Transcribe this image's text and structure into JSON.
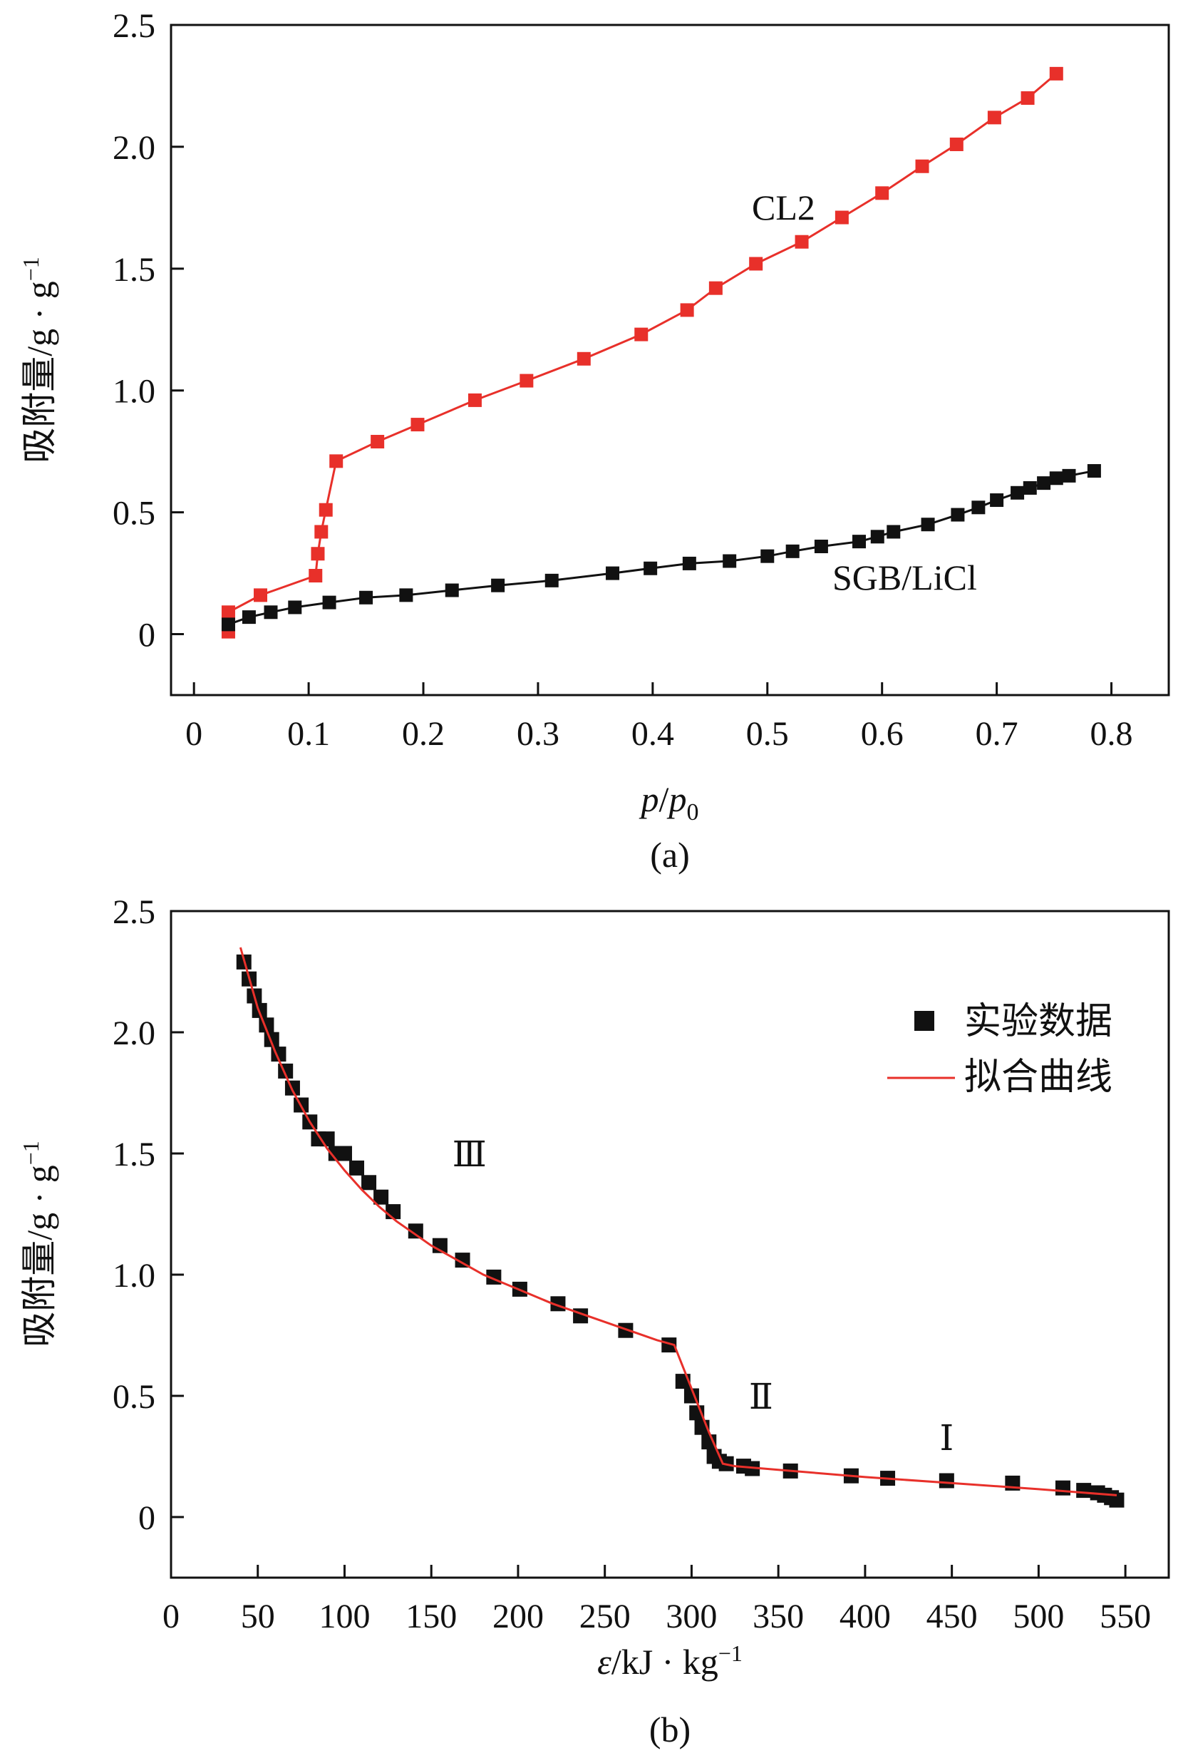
{
  "chart_data": [
    {
      "type": "line",
      "caption": "(a)",
      "ylabel": "吸附量/g · g",
      "ylabel_sup": "−1",
      "xlabel_parts": [
        "p",
        "/",
        "p",
        "0"
      ],
      "xlim": [
        -0.02,
        0.85
      ],
      "ylim": [
        -0.25,
        2.5
      ],
      "xticks": [
        0,
        0.1,
        0.2,
        0.3,
        0.4,
        0.5,
        0.6,
        0.7,
        0.8
      ],
      "xtick_labels": [
        "0",
        "0.1",
        "0.2",
        "0.3",
        "0.4",
        "0.5",
        "0.6",
        "0.7",
        "0.8"
      ],
      "yticks": [
        0,
        0.5,
        1.0,
        1.5,
        2.0,
        2.5
      ],
      "ytick_labels": [
        "0",
        "0.5",
        "1.0",
        "1.5",
        "2.0",
        "2.5"
      ],
      "series": [
        {
          "name": "CL2",
          "color": "#e8302a",
          "x": [
            0.03,
            0.03,
            0.058,
            0.106,
            0.108,
            0.111,
            0.115,
            0.124,
            0.16,
            0.195,
            0.245,
            0.29,
            0.34,
            0.39,
            0.43,
            0.455,
            0.49,
            0.53,
            0.565,
            0.6,
            0.635,
            0.665,
            0.698,
            0.727,
            0.752
          ],
          "y": [
            0.01,
            0.09,
            0.16,
            0.24,
            0.33,
            0.42,
            0.51,
            0.71,
            0.79,
            0.86,
            0.96,
            1.04,
            1.13,
            1.23,
            1.33,
            1.42,
            1.52,
            1.61,
            1.71,
            1.81,
            1.92,
            2.01,
            2.12,
            2.2,
            2.3
          ]
        },
        {
          "name": "SGB/LiCl",
          "color": "#111111",
          "x": [
            0.03,
            0.048,
            0.067,
            0.088,
            0.118,
            0.15,
            0.185,
            0.225,
            0.265,
            0.312,
            0.365,
            0.398,
            0.432,
            0.467,
            0.5,
            0.522,
            0.547,
            0.58,
            0.596,
            0.61,
            0.64,
            0.666,
            0.684,
            0.7,
            0.718,
            0.729,
            0.741,
            0.752,
            0.763,
            0.785
          ],
          "y": [
            0.04,
            0.07,
            0.09,
            0.11,
            0.13,
            0.15,
            0.16,
            0.18,
            0.2,
            0.22,
            0.25,
            0.27,
            0.29,
            0.3,
            0.32,
            0.34,
            0.36,
            0.38,
            0.4,
            0.42,
            0.45,
            0.49,
            0.52,
            0.55,
            0.58,
            0.6,
            0.62,
            0.64,
            0.65,
            0.67
          ]
        }
      ]
    },
    {
      "type": "scatter",
      "caption": "(b)",
      "ylabel": "吸附量/g · g",
      "ylabel_sup": "−1",
      "xlabel_parts": [
        "ε",
        "/kJ · kg",
        "−1"
      ],
      "xlim": [
        0,
        575
      ],
      "ylim": [
        -0.25,
        2.5
      ],
      "xticks": [
        0,
        50,
        100,
        150,
        200,
        250,
        300,
        350,
        400,
        450,
        500,
        550
      ],
      "xtick_labels": [
        "0",
        "50",
        "100",
        "150",
        "200",
        "250",
        "300",
        "350",
        "400",
        "450",
        "500",
        "550"
      ],
      "yticks": [
        0,
        0.5,
        1.0,
        1.5,
        2.0,
        2.5
      ],
      "ytick_labels": [
        "0",
        "0.5",
        "1.0",
        "1.5",
        "2.0",
        "2.5"
      ],
      "regions": [
        {
          "label": "Ⅲ",
          "x": 172,
          "y": 1.5
        },
        {
          "label": "Ⅱ",
          "x": 340,
          "y": 0.5
        },
        {
          "label": "Ⅰ",
          "x": 447,
          "y": 0.33
        }
      ],
      "legend_location": "right",
      "series": [
        {
          "name": "实验数据",
          "color": "#111111",
          "marker": "square",
          "x": [
            42,
            45,
            48,
            51,
            55,
            58,
            62,
            66,
            70,
            75,
            80,
            85,
            90,
            95,
            100,
            107,
            114,
            121,
            128,
            141,
            155,
            168,
            186,
            201,
            223,
            236,
            262,
            287,
            295,
            300,
            303,
            306,
            310,
            313,
            316,
            320,
            330,
            335,
            357,
            392,
            413,
            447,
            485,
            514,
            526,
            534,
            538,
            542,
            545
          ],
          "y": [
            2.29,
            2.22,
            2.15,
            2.09,
            2.03,
            1.97,
            1.91,
            1.84,
            1.77,
            1.7,
            1.63,
            1.56,
            1.56,
            1.5,
            1.5,
            1.44,
            1.38,
            1.32,
            1.26,
            1.18,
            1.12,
            1.06,
            0.99,
            0.94,
            0.88,
            0.83,
            0.77,
            0.71,
            0.56,
            0.5,
            0.43,
            0.37,
            0.31,
            0.25,
            0.23,
            0.22,
            0.21,
            0.2,
            0.19,
            0.17,
            0.16,
            0.15,
            0.14,
            0.12,
            0.11,
            0.1,
            0.09,
            0.08,
            0.07
          ]
        },
        {
          "name": "拟合曲线",
          "color": "#e8302a",
          "marker": "line",
          "x": [
            40,
            50,
            60,
            70,
            80,
            90,
            100,
            110,
            120,
            130,
            140,
            150,
            160,
            170,
            180,
            190,
            200,
            220,
            240,
            260,
            280,
            290,
            300,
            310,
            318,
            325,
            350,
            400,
            450,
            500,
            545
          ],
          "y": [
            2.35,
            2.1,
            1.92,
            1.76,
            1.63,
            1.52,
            1.43,
            1.35,
            1.28,
            1.22,
            1.17,
            1.12,
            1.08,
            1.04,
            1.0,
            0.97,
            0.94,
            0.88,
            0.83,
            0.78,
            0.73,
            0.71,
            0.53,
            0.35,
            0.22,
            0.21,
            0.195,
            0.165,
            0.14,
            0.115,
            0.09
          ]
        }
      ]
    }
  ],
  "annotations_a": {
    "cl2": "CL2",
    "sgb": "SGB/LiCl"
  }
}
